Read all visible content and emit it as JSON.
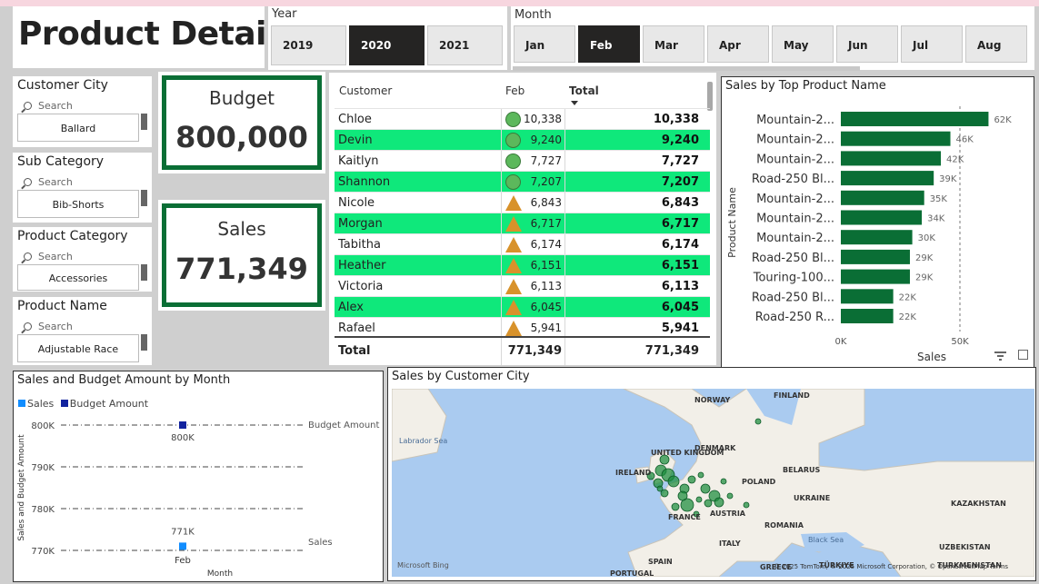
{
  "page": {
    "title": "Product Details"
  },
  "year_slicer": {
    "label": "Year",
    "options": [
      "2019",
      "2020",
      "2021"
    ],
    "selected": "2020"
  },
  "month_slicer": {
    "label": "Month",
    "options": [
      "Jan",
      "Feb",
      "Mar",
      "Apr",
      "May",
      "Jun",
      "Jul",
      "Aug"
    ],
    "selected": "Feb"
  },
  "filters": [
    {
      "label": "Customer City",
      "search_placeholder": "Search",
      "value": "Ballard"
    },
    {
      "label": "Sub Category",
      "search_placeholder": "Search",
      "value": "Bib-Shorts"
    },
    {
      "label": "Product Category",
      "search_placeholder": "Search",
      "value": "Accessories"
    },
    {
      "label": "Product Name",
      "search_placeholder": "Search",
      "value": "Adjustable Race"
    }
  ],
  "kpis": {
    "budget": {
      "label": "Budget",
      "value": "800,000"
    },
    "sales": {
      "label": "Sales",
      "value": "771,349"
    }
  },
  "table": {
    "headers": {
      "customer": "Customer",
      "month": "Feb",
      "total": "Total"
    },
    "rows": [
      {
        "customer": "Chloe",
        "feb": "10,338",
        "total": "10,338",
        "icon": "circle",
        "highlight": false
      },
      {
        "customer": "Devin",
        "feb": "9,240",
        "total": "9,240",
        "icon": "circle",
        "highlight": true
      },
      {
        "customer": "Kaitlyn",
        "feb": "7,727",
        "total": "7,727",
        "icon": "circle",
        "highlight": false
      },
      {
        "customer": "Shannon",
        "feb": "7,207",
        "total": "7,207",
        "icon": "circle",
        "highlight": true
      },
      {
        "customer": "Nicole",
        "feb": "6,843",
        "total": "6,843",
        "icon": "triangle",
        "highlight": false
      },
      {
        "customer": "Morgan",
        "feb": "6,717",
        "total": "6,717",
        "icon": "triangle",
        "highlight": true
      },
      {
        "customer": "Tabitha",
        "feb": "6,174",
        "total": "6,174",
        "icon": "triangle",
        "highlight": false
      },
      {
        "customer": "Heather",
        "feb": "6,151",
        "total": "6,151",
        "icon": "triangle",
        "highlight": true
      },
      {
        "customer": "Victoria",
        "feb": "6,113",
        "total": "6,113",
        "icon": "triangle",
        "highlight": false
      },
      {
        "customer": "Alex",
        "feb": "6,045",
        "total": "6,045",
        "icon": "triangle",
        "highlight": true
      },
      {
        "customer": "Rafael",
        "feb": "5,941",
        "total": "5,941",
        "icon": "triangle",
        "highlight": false
      }
    ],
    "total_row": {
      "label": "Total",
      "feb": "771,349",
      "total": "771,349"
    }
  },
  "bar_chart": {
    "title": "Sales by Top Product Name",
    "chart_data": {
      "type": "bar",
      "orientation": "horizontal",
      "categories": [
        "Mountain-2...",
        "Mountain-2...",
        "Mountain-2...",
        "Road-250 Bl...",
        "Mountain-2...",
        "Mountain-2...",
        "Mountain-2...",
        "Road-250 Bl...",
        "Touring-100...",
        "Road-250 Bl...",
        "Road-250 R..."
      ],
      "values": [
        62,
        46,
        42,
        39,
        35,
        34,
        30,
        29,
        29,
        22,
        22
      ],
      "data_labels": [
        "62K",
        "46K",
        "42K",
        "39K",
        "35K",
        "34K",
        "30K",
        "29K",
        "29K",
        "22K",
        "22K"
      ],
      "xlabel": "Sales",
      "ylabel": "Product Name",
      "xlim": [
        0,
        65
      ],
      "x_ticks": [
        "0K",
        "50K"
      ],
      "color": "#0a6e35"
    }
  },
  "line_chart": {
    "title": "Sales and Budget Amount by Month",
    "chart_data": {
      "type": "scatter",
      "categories": [
        "Feb"
      ],
      "series": [
        {
          "name": "Sales",
          "values": [
            771
          ],
          "label": "771K",
          "color": "#118dff"
        },
        {
          "name": "Budget Amount",
          "values": [
            800
          ],
          "label": "800K",
          "color": "#12239e"
        }
      ],
      "xlabel": "Month",
      "ylabel": "Sales and Budget Amount",
      "y_ticks": [
        "800K",
        "790K",
        "780K",
        "770K"
      ],
      "ylim": [
        768,
        802
      ],
      "reference_lines": [
        "Budget Amount",
        "Sales"
      ]
    }
  },
  "map": {
    "title": "Sales by Customer City",
    "labels": [
      "NORWAY",
      "FINLAND",
      "Labrador Sea",
      "UNITED KINGDOM",
      "DENMARK",
      "IRELAND",
      "BELARUS",
      "POLAND",
      "UKRAINE",
      "KAZAKHSTAN",
      "FRANCE",
      "AUSTRIA",
      "ROMANIA",
      "ITALY",
      "Black Sea",
      "UZBEKISTAN",
      "SPAIN",
      "PORTUGAL",
      "TÜRKIYE",
      "TURKMENISTAN",
      "GREECE"
    ],
    "attribution": "© 2025 TomTom, © 2025 Microsoft Corporation, © OpenStreetMap Terms",
    "brand": "Microsoft Bing"
  }
}
